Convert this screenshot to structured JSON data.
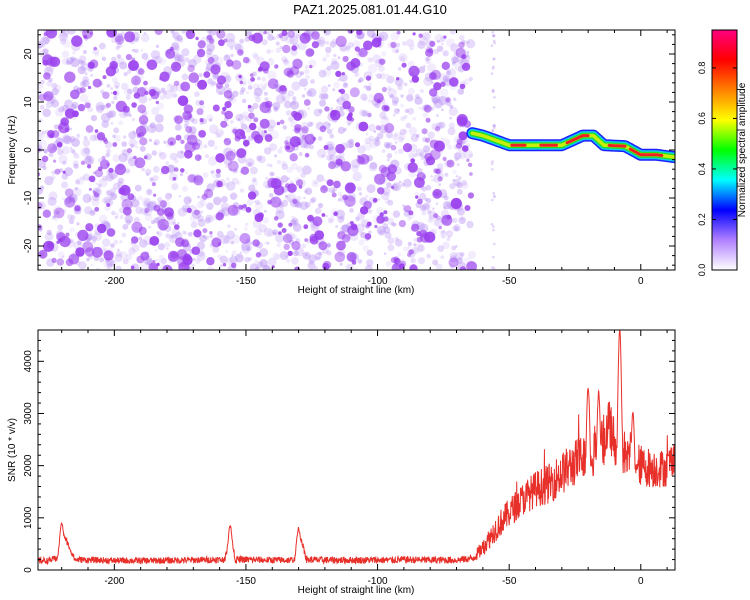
{
  "title": "PAZ1.2025.081.01.44.G10",
  "colors": {
    "snr_line": "#e8302a",
    "track_core": "#ee2222",
    "track_mid": "#c8ee10",
    "track_outer": "#10c8ee",
    "noise": "#9a40ee",
    "axis": "#000000"
  },
  "chart_data": [
    {
      "type": "heatmap",
      "title": "PAZ1.2025.081.01.44.G10",
      "xlabel": "Height of straight line (km)",
      "ylabel": "Frequency (Hz)",
      "xlim": [
        -229,
        13
      ],
      "ylim": [
        -25,
        25
      ],
      "xticks": [
        -200,
        -150,
        -100,
        -50,
        0
      ],
      "yticks": [
        -20,
        -10,
        0,
        10,
        20
      ],
      "noise_region_x": [
        -229,
        -64
      ],
      "signal_track": {
        "x": [
          -64,
          -60,
          -56,
          -50,
          -40,
          -30,
          -22,
          -18,
          -14,
          -6,
          0,
          6,
          13
        ],
        "freq": [
          3.5,
          3.0,
          2.2,
          1.0,
          1.0,
          1.0,
          3.0,
          3.0,
          1.0,
          0.8,
          -1.0,
          -1.0,
          -1.5
        ]
      },
      "colorbar": {
        "label": "Normalized spectral amplitude",
        "range": [
          0,
          0.95
        ],
        "ticks": [
          "0.0",
          "0.2",
          "0.4",
          "0.6",
          "0.8"
        ],
        "tick_values": [
          0,
          0.2,
          0.4,
          0.6,
          0.8
        ],
        "colors": [
          "#ffffff",
          "#b080ff",
          "#0000ff",
          "#00ffff",
          "#00ff00",
          "#ffff00",
          "#ff8000",
          "#ff0000",
          "#ff0080"
        ]
      }
    },
    {
      "type": "line",
      "xlabel": "Height of straight line (km)",
      "ylabel": "SNR (10 * v/v)",
      "xlim": [
        -229,
        13
      ],
      "ylim": [
        0,
        4600
      ],
      "xticks": [
        -200,
        -150,
        -100,
        -50,
        0
      ],
      "yticks": [
        0,
        1000,
        2000,
        3000,
        4000
      ],
      "envelope": {
        "x": [
          -229,
          -225,
          -221,
          -219,
          -215,
          -200,
          -185,
          -170,
          -158,
          -156,
          -154,
          -140,
          -131,
          -129,
          -127,
          -122,
          -115,
          -105,
          -95,
          -90,
          -80,
          -70,
          -64,
          -60,
          -55,
          -50,
          -45,
          -40,
          -35,
          -30,
          -25,
          -20,
          -15,
          -12,
          -10,
          -8,
          -5,
          0,
          5,
          10,
          13
        ],
        "y": [
          180,
          180,
          240,
          650,
          200,
          180,
          180,
          190,
          200,
          700,
          200,
          190,
          190,
          600,
          200,
          190,
          190,
          190,
          190,
          200,
          190,
          190,
          220,
          420,
          800,
          1100,
          1350,
          1550,
          1650,
          1850,
          2050,
          2250,
          2350,
          2800,
          2450,
          2300,
          2300,
          2000,
          1950,
          1950,
          2250
        ]
      },
      "noise_amplitude": {
        "x": [
          -229,
          -65,
          -55,
          -40,
          -25,
          -15,
          0,
          13
        ],
        "y": [
          60,
          70,
          250,
          350,
          450,
          500,
          400,
          350
        ]
      },
      "peaks": [
        {
          "x": -220,
          "y": 900
        },
        {
          "x": -156,
          "y": 850
        },
        {
          "x": -130,
          "y": 800
        },
        {
          "x": -20,
          "y": 3500
        },
        {
          "x": -16,
          "y": 3400
        },
        {
          "x": -8,
          "y": 4600
        },
        {
          "x": -3,
          "y": 3000
        }
      ]
    }
  ]
}
